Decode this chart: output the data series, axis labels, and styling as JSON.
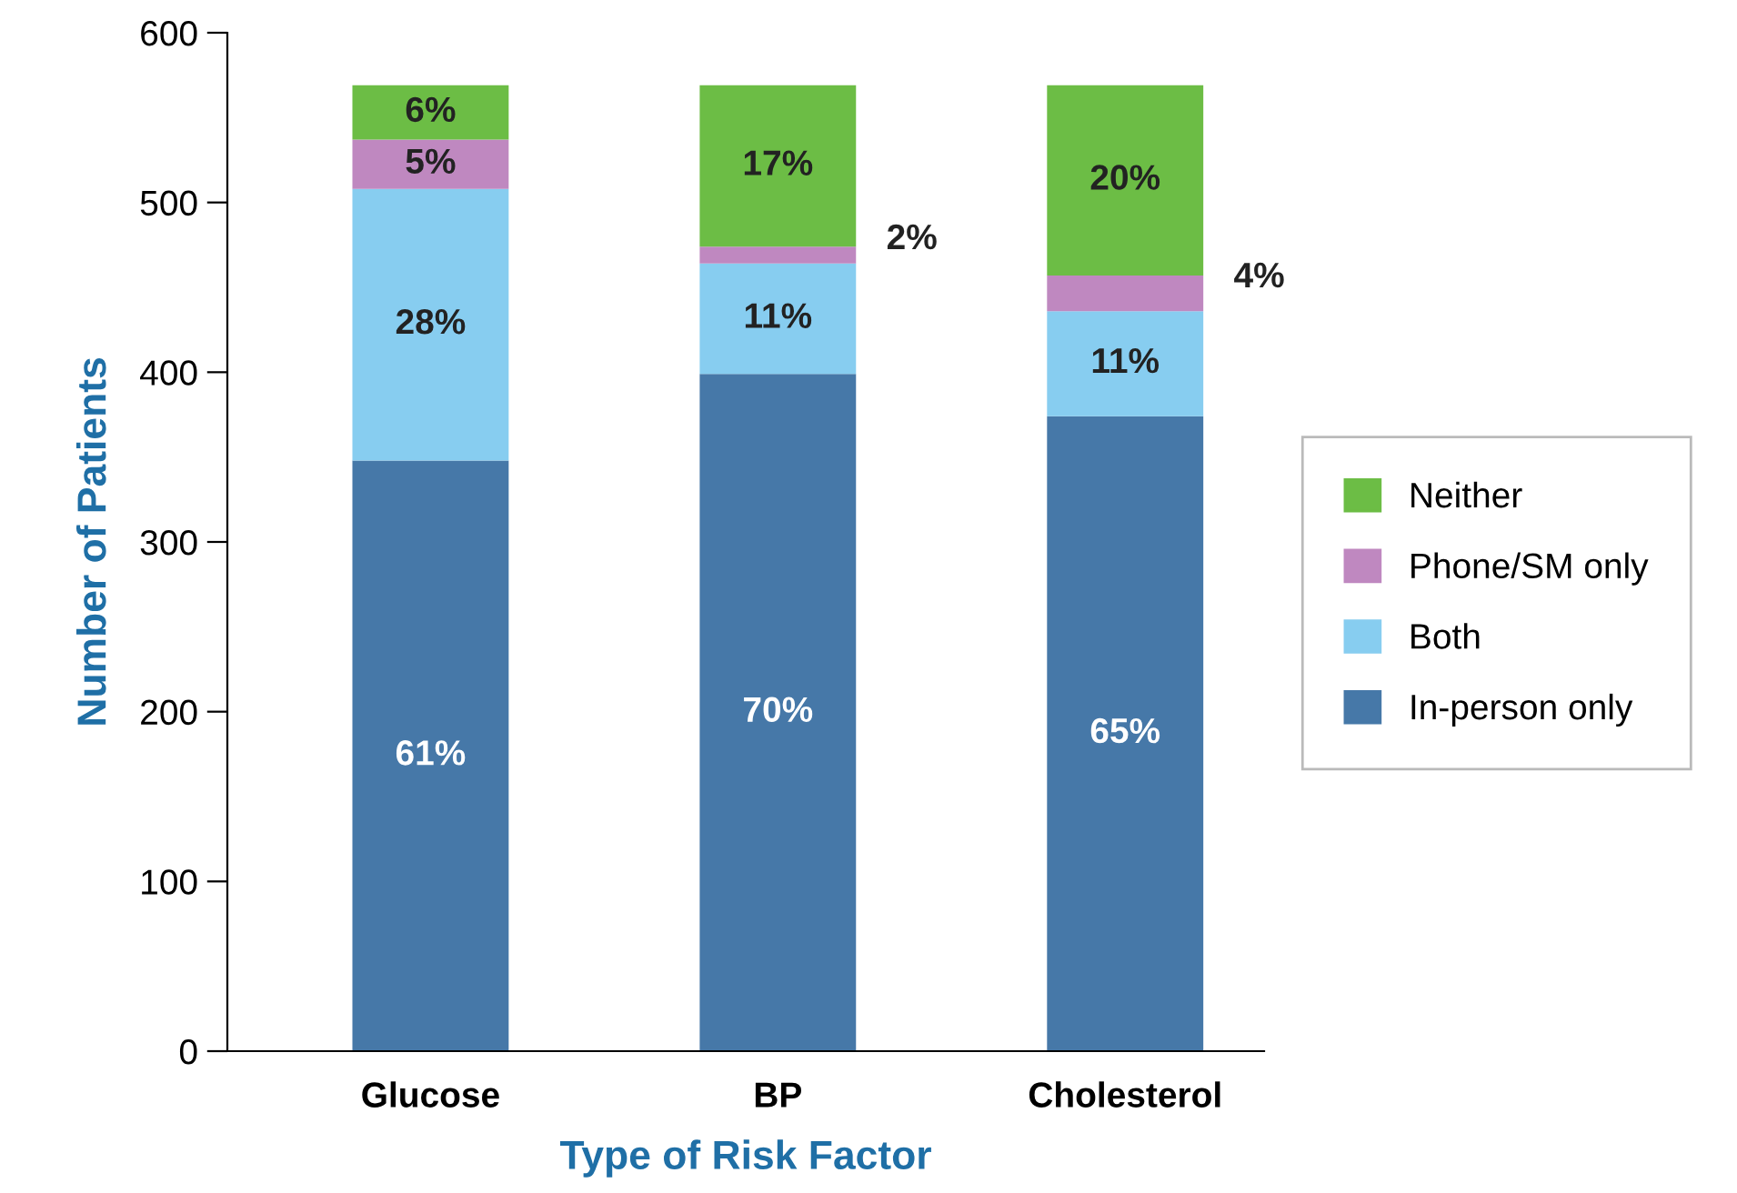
{
  "chart_data": {
    "type": "bar",
    "stacked": true,
    "xlabel": "Type of Risk Factor",
    "ylabel": "Number of Patients",
    "categories": [
      "Glucose",
      "BP",
      "Cholesterol"
    ],
    "series": [
      {
        "name": "In-person only",
        "color": "#4678a8",
        "values": [
          348,
          399,
          374
        ]
      },
      {
        "name": "Both",
        "color": "#87cdf0",
        "values": [
          160,
          65,
          62
        ]
      },
      {
        "name": "Phone/SM only",
        "color": "#bf88c0",
        "values": [
          29,
          10,
          21
        ]
      },
      {
        "name": "Neither",
        "color": "#6cbd45",
        "values": [
          32,
          95,
          112
        ]
      }
    ],
    "annotations": [
      "61%",
      "28%",
      "5%",
      "6%",
      "70%",
      "11%",
      "2%",
      "17%",
      "65%",
      "11%",
      "4%",
      "20%"
    ],
    "ylim": [
      0,
      600
    ],
    "yticks": [
      0,
      100,
      200,
      300,
      400,
      500,
      600
    ],
    "legend": "right",
    "grid": false
  }
}
